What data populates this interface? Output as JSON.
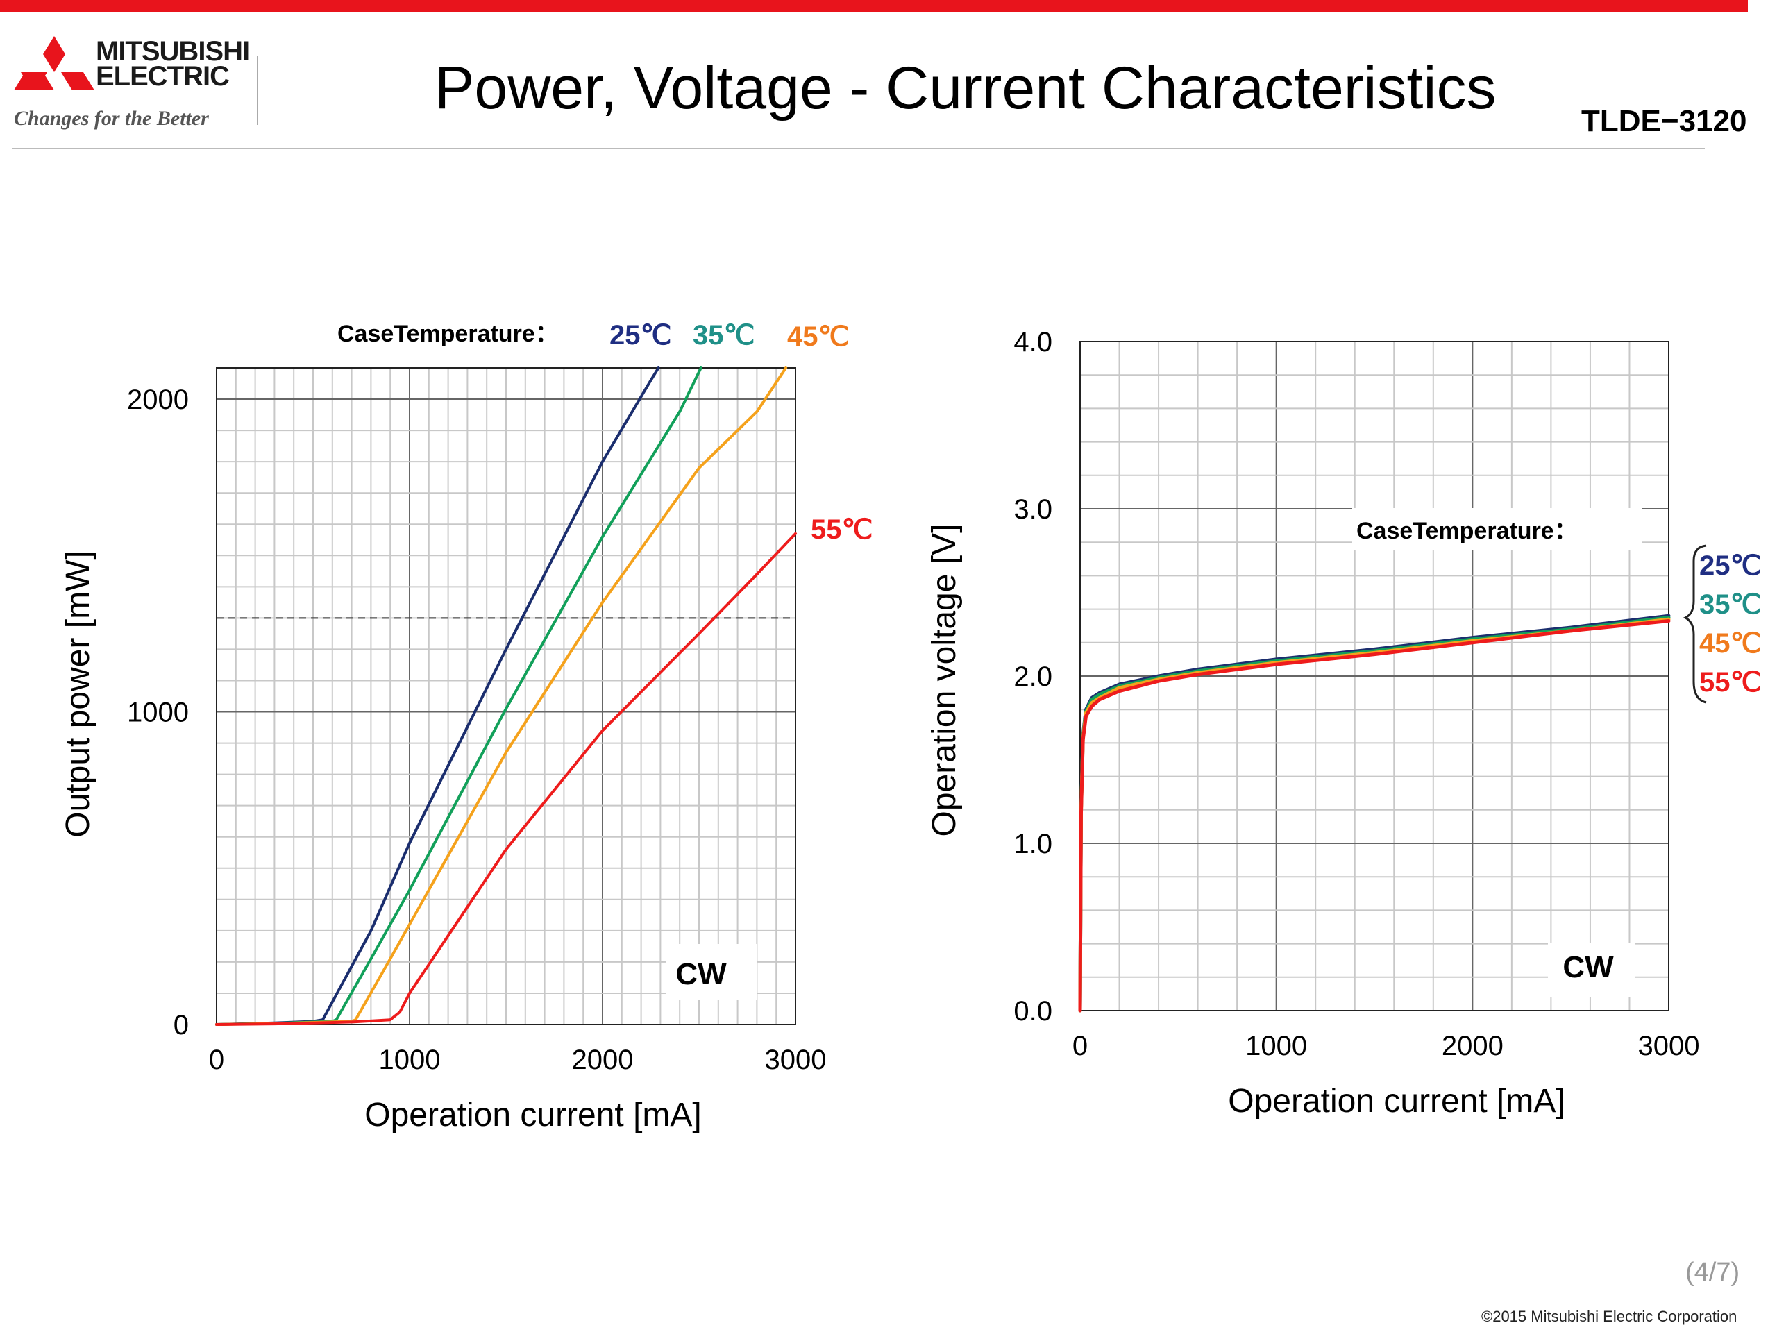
{
  "header": {
    "logo_line1": "MITSUBISHI",
    "logo_line2": "ELECTRIC",
    "logo_tagline": "Changes for the Better",
    "title": "Power, Voltage - Current Characteristics",
    "model": "TLDE−3120"
  },
  "footer": {
    "page_number": "(4/7)",
    "copyright": "©2015 Mitsubishi Electric Corporation"
  },
  "colors": {
    "brand_red": "#e8141c",
    "t25": "#1b2e6e",
    "t35": "#12a05a",
    "t45": "#f5a21c",
    "t55": "#ee1c1c",
    "legend_25": "#1f2e82",
    "legend_35": "#1f9088",
    "legend_45": "#f07a1c",
    "legend_55": "#ee1c1c"
  },
  "chart_data": [
    {
      "type": "line",
      "xlabel": "Operation current [mA]",
      "ylabel": "Output power [mW]",
      "xlim": [
        0,
        3000
      ],
      "ylim": [
        0,
        2100
      ],
      "xticks": [
        "0",
        "1000",
        "2000",
        "3000"
      ],
      "yticks": [
        "0",
        "1000",
        "2000"
      ],
      "grid": true,
      "legend_title": "CaseTemperature：",
      "legend_placement": "top",
      "annotation": "CW",
      "reference_line_y": 1300,
      "series": [
        {
          "name": "25℃",
          "x": [
            0,
            300,
            500,
            550,
            800,
            1000,
            1500,
            2000,
            2250,
            2290
          ],
          "y": [
            0,
            5,
            10,
            15,
            300,
            580,
            1200,
            1800,
            2060,
            2100
          ]
        },
        {
          "name": "35℃",
          "x": [
            0,
            300,
            600,
            620,
            800,
            1000,
            1500,
            2000,
            2400,
            2510
          ],
          "y": [
            0,
            4,
            10,
            15,
            210,
            430,
            1010,
            1560,
            1960,
            2100
          ]
        },
        {
          "name": "45℃",
          "x": [
            0,
            300,
            700,
            720,
            900,
            1000,
            1500,
            2000,
            2500,
            2800,
            2950
          ],
          "y": [
            0,
            3,
            10,
            15,
            210,
            320,
            870,
            1350,
            1780,
            1960,
            2100
          ]
        },
        {
          "name": "55℃",
          "x": [
            0,
            300,
            700,
            900,
            950,
            1000,
            1500,
            2000,
            2500,
            2800,
            3000
          ],
          "y": [
            0,
            2,
            8,
            15,
            40,
            100,
            560,
            940,
            1250,
            1440,
            1570
          ]
        }
      ]
    },
    {
      "type": "line",
      "xlabel": "Operation current [mA]",
      "ylabel": "Operation voltage [V]",
      "xlim": [
        0,
        3000
      ],
      "ylim": [
        0,
        4.0
      ],
      "xticks": [
        "0",
        "1000",
        "2000",
        "3000"
      ],
      "yticks": [
        "0.0",
        "1.0",
        "2.0",
        "3.0",
        "4.0"
      ],
      "grid": true,
      "legend_title": "CaseTemperature：",
      "legend_placement": "right",
      "annotation": "CW",
      "series": [
        {
          "name": "25℃",
          "x": [
            0,
            5,
            15,
            30,
            60,
            100,
            200,
            400,
            600,
            1000,
            1500,
            2000,
            2500,
            3000
          ],
          "y": [
            0,
            1.2,
            1.65,
            1.8,
            1.87,
            1.9,
            1.95,
            2.0,
            2.04,
            2.1,
            2.16,
            2.23,
            2.29,
            2.36
          ]
        },
        {
          "name": "35℃",
          "x": [
            0,
            5,
            15,
            30,
            60,
            100,
            200,
            400,
            600,
            1000,
            1500,
            2000,
            2500,
            3000
          ],
          "y": [
            0,
            1.19,
            1.64,
            1.79,
            1.86,
            1.89,
            1.94,
            1.99,
            2.03,
            2.09,
            2.15,
            2.22,
            2.28,
            2.35
          ]
        },
        {
          "name": "45℃",
          "x": [
            0,
            5,
            15,
            30,
            60,
            100,
            200,
            400,
            600,
            1000,
            1500,
            2000,
            2500,
            3000
          ],
          "y": [
            0,
            1.18,
            1.63,
            1.78,
            1.84,
            1.87,
            1.93,
            1.98,
            2.02,
            2.08,
            2.14,
            2.21,
            2.27,
            2.34
          ]
        },
        {
          "name": "55℃",
          "x": [
            0,
            5,
            15,
            30,
            60,
            100,
            200,
            400,
            600,
            1000,
            1500,
            2000,
            2500,
            3000
          ],
          "y": [
            0,
            1.17,
            1.62,
            1.76,
            1.82,
            1.86,
            1.91,
            1.97,
            2.01,
            2.07,
            2.13,
            2.2,
            2.27,
            2.33
          ]
        }
      ]
    }
  ]
}
